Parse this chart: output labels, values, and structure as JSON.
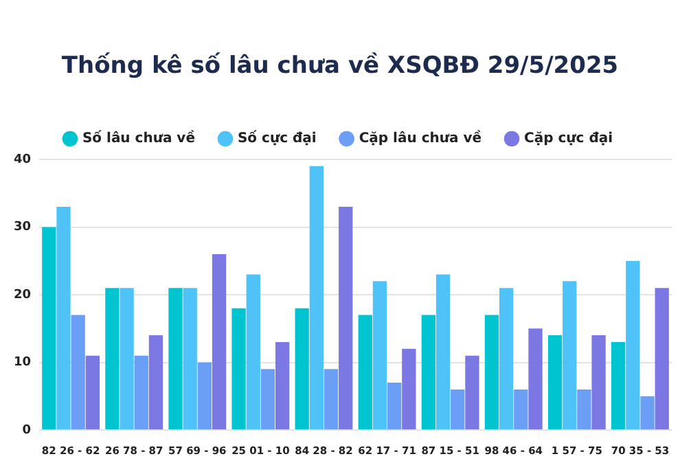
{
  "chart_data": {
    "type": "bar",
    "title": "Thống kê số lâu chưa về XSQBĐ 29/5/2025",
    "categories": [
      "82 26 - 62",
      "26 78 - 87",
      "57 69 - 96",
      "25 01 - 10",
      "84 28 - 82",
      "62 17 - 71",
      "87 15 - 51",
      "98 46 - 64",
      "1 57 - 75",
      "70 35 - 53"
    ],
    "series": [
      {
        "name": "Số lâu chưa về",
        "color": "#00c5d0",
        "values": [
          30,
          21,
          21,
          18,
          18,
          17,
          17,
          17,
          14,
          13
        ]
      },
      {
        "name": "Số cực đại",
        "color": "#4fc3f7",
        "values": [
          33,
          21,
          21,
          23,
          39,
          22,
          23,
          21,
          22,
          25
        ]
      },
      {
        "name": "Cặp lâu chưa về",
        "color": "#6a9ff5",
        "values": [
          17,
          11,
          10,
          9,
          9,
          7,
          6,
          6,
          6,
          5
        ]
      },
      {
        "name": "Cặp cực đại",
        "color": "#7b78e3",
        "values": [
          11,
          14,
          26,
          13,
          33,
          12,
          11,
          15,
          14,
          21
        ]
      }
    ],
    "ylim": [
      0,
      40
    ],
    "yticks": [
      0,
      10,
      20,
      30,
      40
    ],
    "grid": "y",
    "legend": "top",
    "marker": "circle"
  }
}
